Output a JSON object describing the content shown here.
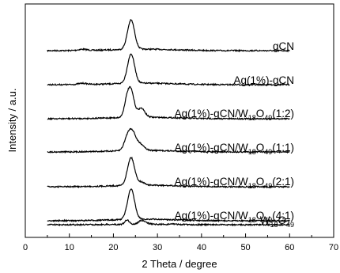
{
  "chart_data": {
    "type": "line",
    "title": "",
    "xlabel": "2 Theta / degree",
    "ylabel": "Intensity / a.u.",
    "xlim": [
      0,
      70
    ],
    "xticks": [
      0,
      10,
      20,
      30,
      40,
      50,
      60,
      70
    ],
    "grid": false,
    "legend": "none",
    "y_tick_labels": false,
    "series": [
      {
        "name": "gCN",
        "label_parts": [
          {
            "t": "gCN",
            "sub": false
          }
        ],
        "data_range": [
          5,
          60
        ],
        "peaks": [
          {
            "pos": 24.0,
            "height": 1.0,
            "width": 0.8
          },
          {
            "pos": 13.0,
            "height": 0.04,
            "width": 1.0
          }
        ]
      },
      {
        "name": "Ag(1%)-gCN",
        "label_parts": [
          {
            "t": "Ag(1%)-gCN",
            "sub": false
          }
        ],
        "data_range": [
          5,
          60
        ],
        "peaks": [
          {
            "pos": 24.0,
            "height": 1.0,
            "width": 0.8
          },
          {
            "pos": 13.0,
            "height": 0.04,
            "width": 1.0
          }
        ]
      },
      {
        "name": "Ag(1%)-gCN/W18O49(1:2)",
        "label_parts": [
          {
            "t": "Ag(1%)-gCN/W",
            "sub": false
          },
          {
            "t": "18",
            "sub": true
          },
          {
            "t": "O",
            "sub": false
          },
          {
            "t": "49",
            "sub": true
          },
          {
            "t": "(1:2)",
            "sub": false
          }
        ],
        "data_range": [
          5,
          60
        ],
        "peaks": [
          {
            "pos": 23.0,
            "height": 0.45,
            "width": 0.6
          },
          {
            "pos": 24.0,
            "height": 0.85,
            "width": 0.7
          },
          {
            "pos": 26.3,
            "height": 0.3,
            "width": 0.8
          }
        ]
      },
      {
        "name": "Ag(1%)-gCN/W18O49(1:1)",
        "label_parts": [
          {
            "t": "Ag(1%)-gCN/W",
            "sub": false
          },
          {
            "t": "18",
            "sub": true
          },
          {
            "t": "O",
            "sub": false
          },
          {
            "t": "49",
            "sub": true
          },
          {
            "t": "(1:1)",
            "sub": false
          }
        ],
        "data_range": [
          5,
          60
        ],
        "peaks": [
          {
            "pos": 23.0,
            "height": 0.25,
            "width": 0.7
          },
          {
            "pos": 24.2,
            "height": 0.65,
            "width": 0.9
          },
          {
            "pos": 26.3,
            "height": 0.18,
            "width": 0.8
          }
        ]
      },
      {
        "name": "Ag(1%)-gCN/W18O49(2:1)",
        "label_parts": [
          {
            "t": "Ag(1%)-gCN/W",
            "sub": false
          },
          {
            "t": "18",
            "sub": true
          },
          {
            "t": "O",
            "sub": false
          },
          {
            "t": "49",
            "sub": true
          },
          {
            "t": "(2:1)",
            "sub": false
          }
        ],
        "data_range": [
          5,
          60
        ],
        "peaks": [
          {
            "pos": 24.0,
            "height": 0.9,
            "width": 0.8
          },
          {
            "pos": 26.3,
            "height": 0.1,
            "width": 0.8
          }
        ]
      },
      {
        "name": "Ag(1%)-gCN/W18O49(4:1)",
        "label_parts": [
          {
            "t": "Ag(1%)-gCN/W",
            "sub": false
          },
          {
            "t": "18",
            "sub": true
          },
          {
            "t": "O",
            "sub": false
          },
          {
            "t": "49",
            "sub": true
          },
          {
            "t": "(4:1)",
            "sub": false
          }
        ],
        "data_range": [
          5,
          60
        ],
        "peaks": [
          {
            "pos": 24.0,
            "height": 0.95,
            "width": 0.8
          }
        ]
      },
      {
        "name": "W18O49",
        "label_parts": [
          {
            "t": "W",
            "sub": false
          },
          {
            "t": "18",
            "sub": true
          },
          {
            "t": "O",
            "sub": false
          },
          {
            "t": "49",
            "sub": true
          }
        ],
        "data_range": [
          5,
          60
        ],
        "peaks": [
          {
            "pos": 23.1,
            "height": 0.45,
            "width": 0.5
          },
          {
            "pos": 26.4,
            "height": 0.4,
            "width": 0.7
          },
          {
            "pos": 28.0,
            "height": 0.08,
            "width": 0.6
          },
          {
            "pos": 33.5,
            "height": 0.06,
            "width": 0.6
          }
        ]
      }
    ]
  }
}
